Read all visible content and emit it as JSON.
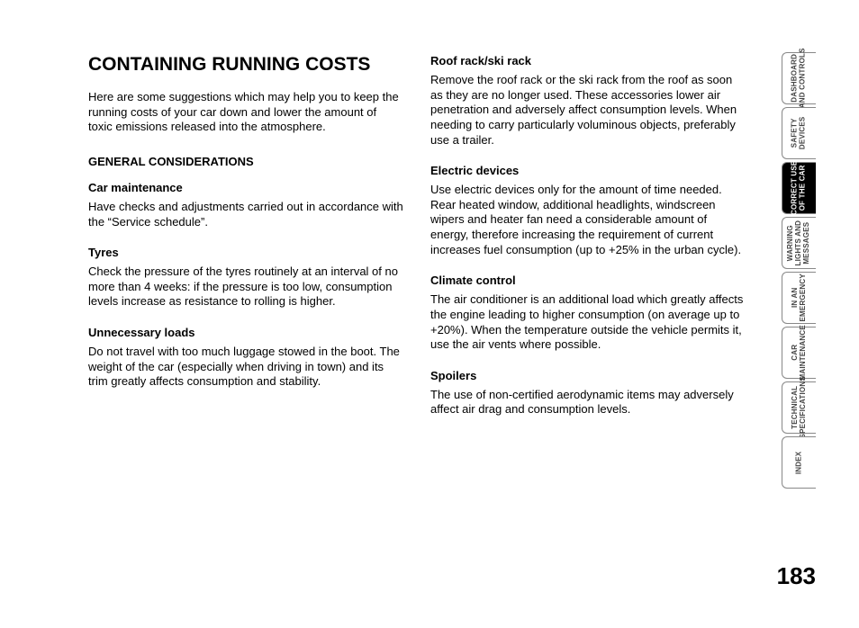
{
  "title": "CONTAINING RUNNING COSTS",
  "intro": "Here are some suggestions which may help you to keep the running costs of your car down and lower the amount of toxic emissions released into the atmosphere.",
  "section_heading": "GENERAL CONSIDERATIONS",
  "col1": {
    "s1": {
      "h": "Car maintenance",
      "p": "Have checks and adjustments carried out in accordance with the “Service schedule”."
    },
    "s2": {
      "h": "Tyres",
      "p": "Check the pressure of the tyres routinely at an interval of no more than 4 weeks: if the pressure is too low, consumption levels increase as resistance to rolling is higher."
    },
    "s3": {
      "h": "Unnecessary loads",
      "p": "Do not travel with too much luggage stowed in the boot. The weight of the car (especially when driving in town) and its trim greatly affects consumption and stability."
    }
  },
  "col2": {
    "s1": {
      "h": "Roof rack/ski rack",
      "p": "Remove the roof rack or the ski rack from the roof as soon as they are no longer used. These accessories lower air penetration and adversely affect consumption levels. When needing to carry particularly voluminous objects, preferably use a trailer."
    },
    "s2": {
      "h": "Electric devices",
      "p": "Use electric devices only for the amount of time needed. Rear heated window, additional headlights, windscreen wipers and heater fan need a considerable amount of energy, therefore increasing the requirement of current increases fuel consumption (up to +25% in the urban cycle)."
    },
    "s3": {
      "h": "Climate control",
      "p": "The air conditioner is an additional load which greatly affects the engine leading to higher consumption (on average up to +20%). When the temperature outside the vehicle permits it, use the air vents where possible."
    },
    "s4": {
      "h": "Spoilers",
      "p": "The use of non-certified aerodynamic items may adversely affect air drag and consumption levels."
    }
  },
  "tabs": {
    "t1": "DASHBOARD\nAND CONTROLS",
    "t2": "SAFETY\nDEVICES",
    "t3": "CORRECT USE\nOF THE CAR",
    "t4": "WARNING\nLIGHTS AND\nMESSAGES",
    "t5": "IN AN\nEMERGENCY",
    "t6": "CAR\nMAINTENANCE",
    "t7": "TECHNICAL\nSPECIFICATIONS",
    "t8": "INDEX"
  },
  "page_number": "183"
}
